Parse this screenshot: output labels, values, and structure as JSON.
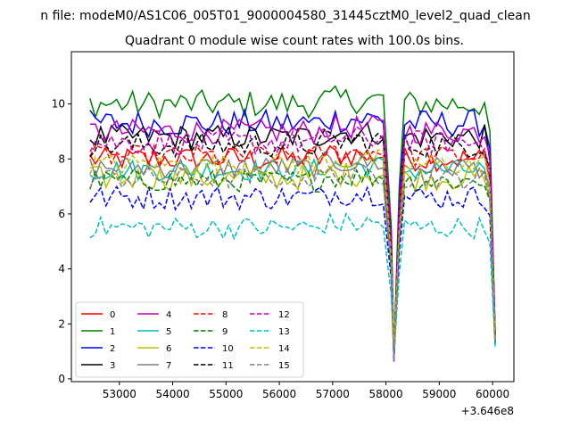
{
  "figure": {
    "suptitle": "n file: modeM0/AS1C06_005T01_9000004580_31445cztM0_level2_quad_clean",
    "title": "Quadrant 0 module wise count rates with 100.0s bins.",
    "x_offset_label": "+3.646e8"
  },
  "chart_data": {
    "type": "line",
    "title": "Quadrant 0 module wise count rates with 100.0s bins.",
    "xlabel": "",
    "ylabel": "",
    "x_offset": 364600000,
    "xlim": [
      52100,
      60400
    ],
    "ylim": [
      -0.1,
      11.9
    ],
    "xticks": [
      53000,
      54000,
      55000,
      56000,
      57000,
      58000,
      59000,
      60000
    ],
    "yticks": [
      0,
      2,
      4,
      6,
      8,
      10
    ],
    "grid": false,
    "legend_position": "lower-left",
    "series": [
      {
        "name": "0",
        "color": "#ff0000",
        "dash": "solid",
        "level": 8.0,
        "amp": 0.45,
        "end": 1.7
      },
      {
        "name": "1",
        "color": "#008000",
        "dash": "solid",
        "level": 10.0,
        "amp": 0.5,
        "end": 1.5
      },
      {
        "name": "2",
        "color": "#0000ff",
        "dash": "solid",
        "level": 9.3,
        "amp": 0.5,
        "end": 1.5
      },
      {
        "name": "3",
        "color": "#000000",
        "dash": "solid",
        "level": 8.8,
        "amp": 0.45,
        "end": 1.5
      },
      {
        "name": "4",
        "color": "#bf00bf",
        "dash": "solid",
        "level": 9.0,
        "amp": 0.45,
        "end": 1.6
      },
      {
        "name": "5",
        "color": "#00bfbf",
        "dash": "solid",
        "level": 7.6,
        "amp": 0.4,
        "end": 1.3
      },
      {
        "name": "6",
        "color": "#bfbf00",
        "dash": "solid",
        "level": 7.3,
        "amp": 0.45,
        "end": 1.4
      },
      {
        "name": "7",
        "color": "#808080",
        "dash": "solid",
        "level": 7.7,
        "amp": 0.4,
        "end": 1.4
      },
      {
        "name": "8",
        "color": "#ff0000",
        "dash": "dashed",
        "level": 8.1,
        "amp": 0.4,
        "end": 1.5
      },
      {
        "name": "9",
        "color": "#008000",
        "dash": "dashed",
        "level": 7.2,
        "amp": 0.4,
        "end": 1.3
      },
      {
        "name": "10",
        "color": "#0000ff",
        "dash": "dashed",
        "level": 6.6,
        "amp": 0.45,
        "end": 1.2
      },
      {
        "name": "11",
        "color": "#000000",
        "dash": "dashed",
        "level": 8.5,
        "amp": 0.45,
        "end": 1.5
      },
      {
        "name": "12",
        "color": "#bf00bf",
        "dash": "dashed",
        "level": 8.6,
        "amp": 0.45,
        "end": 1.5
      },
      {
        "name": "13",
        "color": "#00bfbf",
        "dash": "dashed",
        "level": 5.5,
        "amp": 0.4,
        "end": 1.1
      },
      {
        "name": "14",
        "color": "#bfbf00",
        "dash": "dashed",
        "level": 7.8,
        "amp": 0.4,
        "end": 1.4
      },
      {
        "name": "15",
        "color": "#808080",
        "dash": "dashed",
        "level": 7.3,
        "amp": 0.4,
        "end": 1.3
      }
    ]
  }
}
